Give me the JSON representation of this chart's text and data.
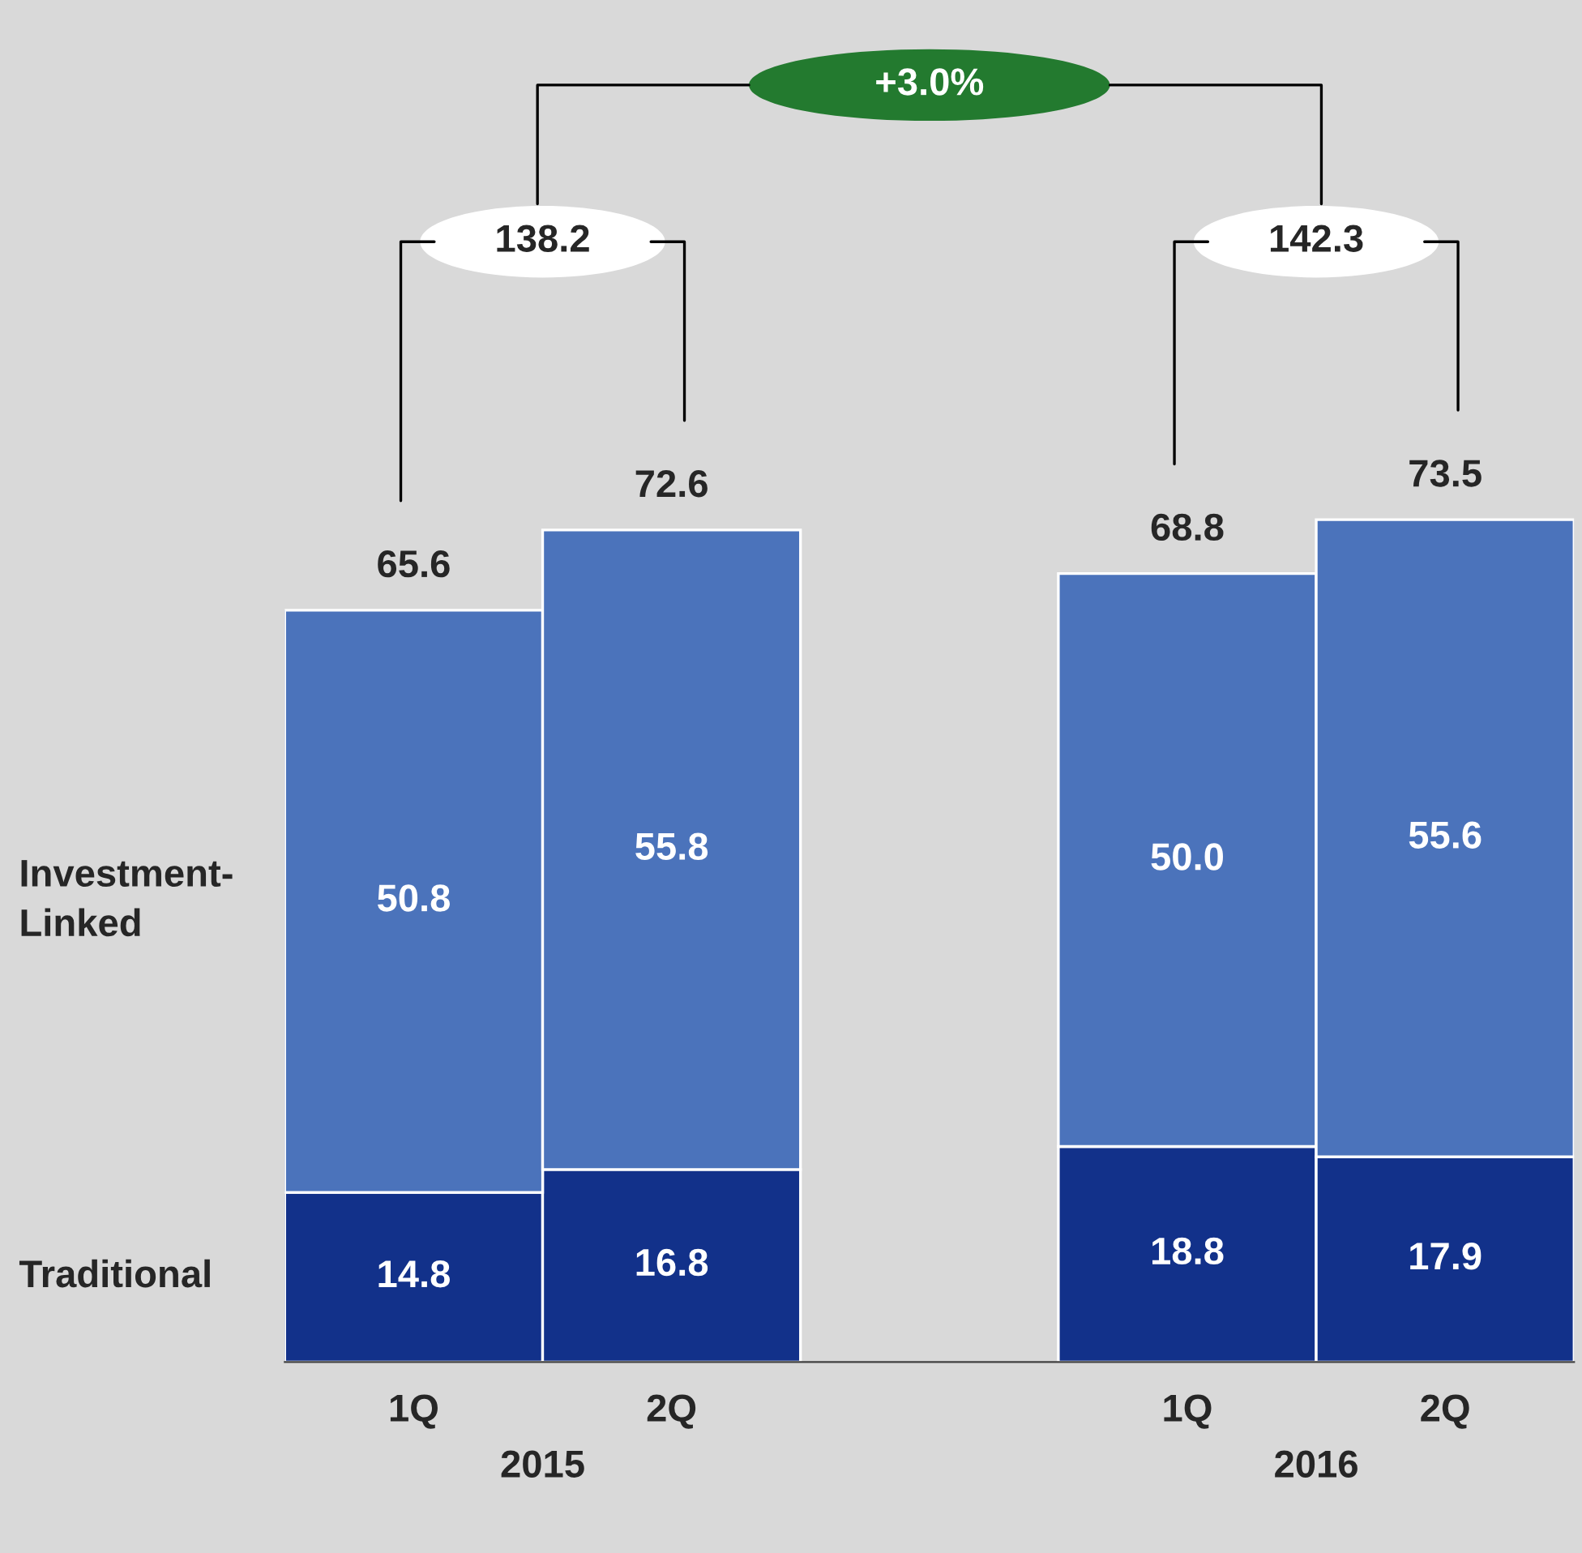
{
  "chart_data": {
    "type": "bar",
    "stacked": true,
    "categories": [
      "1Q",
      "2Q",
      null,
      "1Q",
      "2Q"
    ],
    "series": [
      {
        "name": "Traditional",
        "color": "#12318a",
        "values": [
          14.8,
          16.8,
          null,
          18.8,
          17.9
        ],
        "value_labels": [
          "14.8",
          "16.8",
          null,
          "18.8",
          "17.9"
        ]
      },
      {
        "name": "Investment-Linked",
        "color": "#4b73bb",
        "values": [
          50.8,
          55.8,
          null,
          50.0,
          55.6
        ],
        "value_labels": [
          "50.8",
          "55.8",
          null,
          "50.0",
          "55.6"
        ]
      }
    ],
    "totals": [
      "65.6",
      "72.6",
      null,
      "68.8",
      "73.5"
    ],
    "annotations": [
      "138.2",
      "142.3",
      "+3.0%",
      "2015",
      "2016"
    ],
    "legend": false,
    "grid": false
  }
}
